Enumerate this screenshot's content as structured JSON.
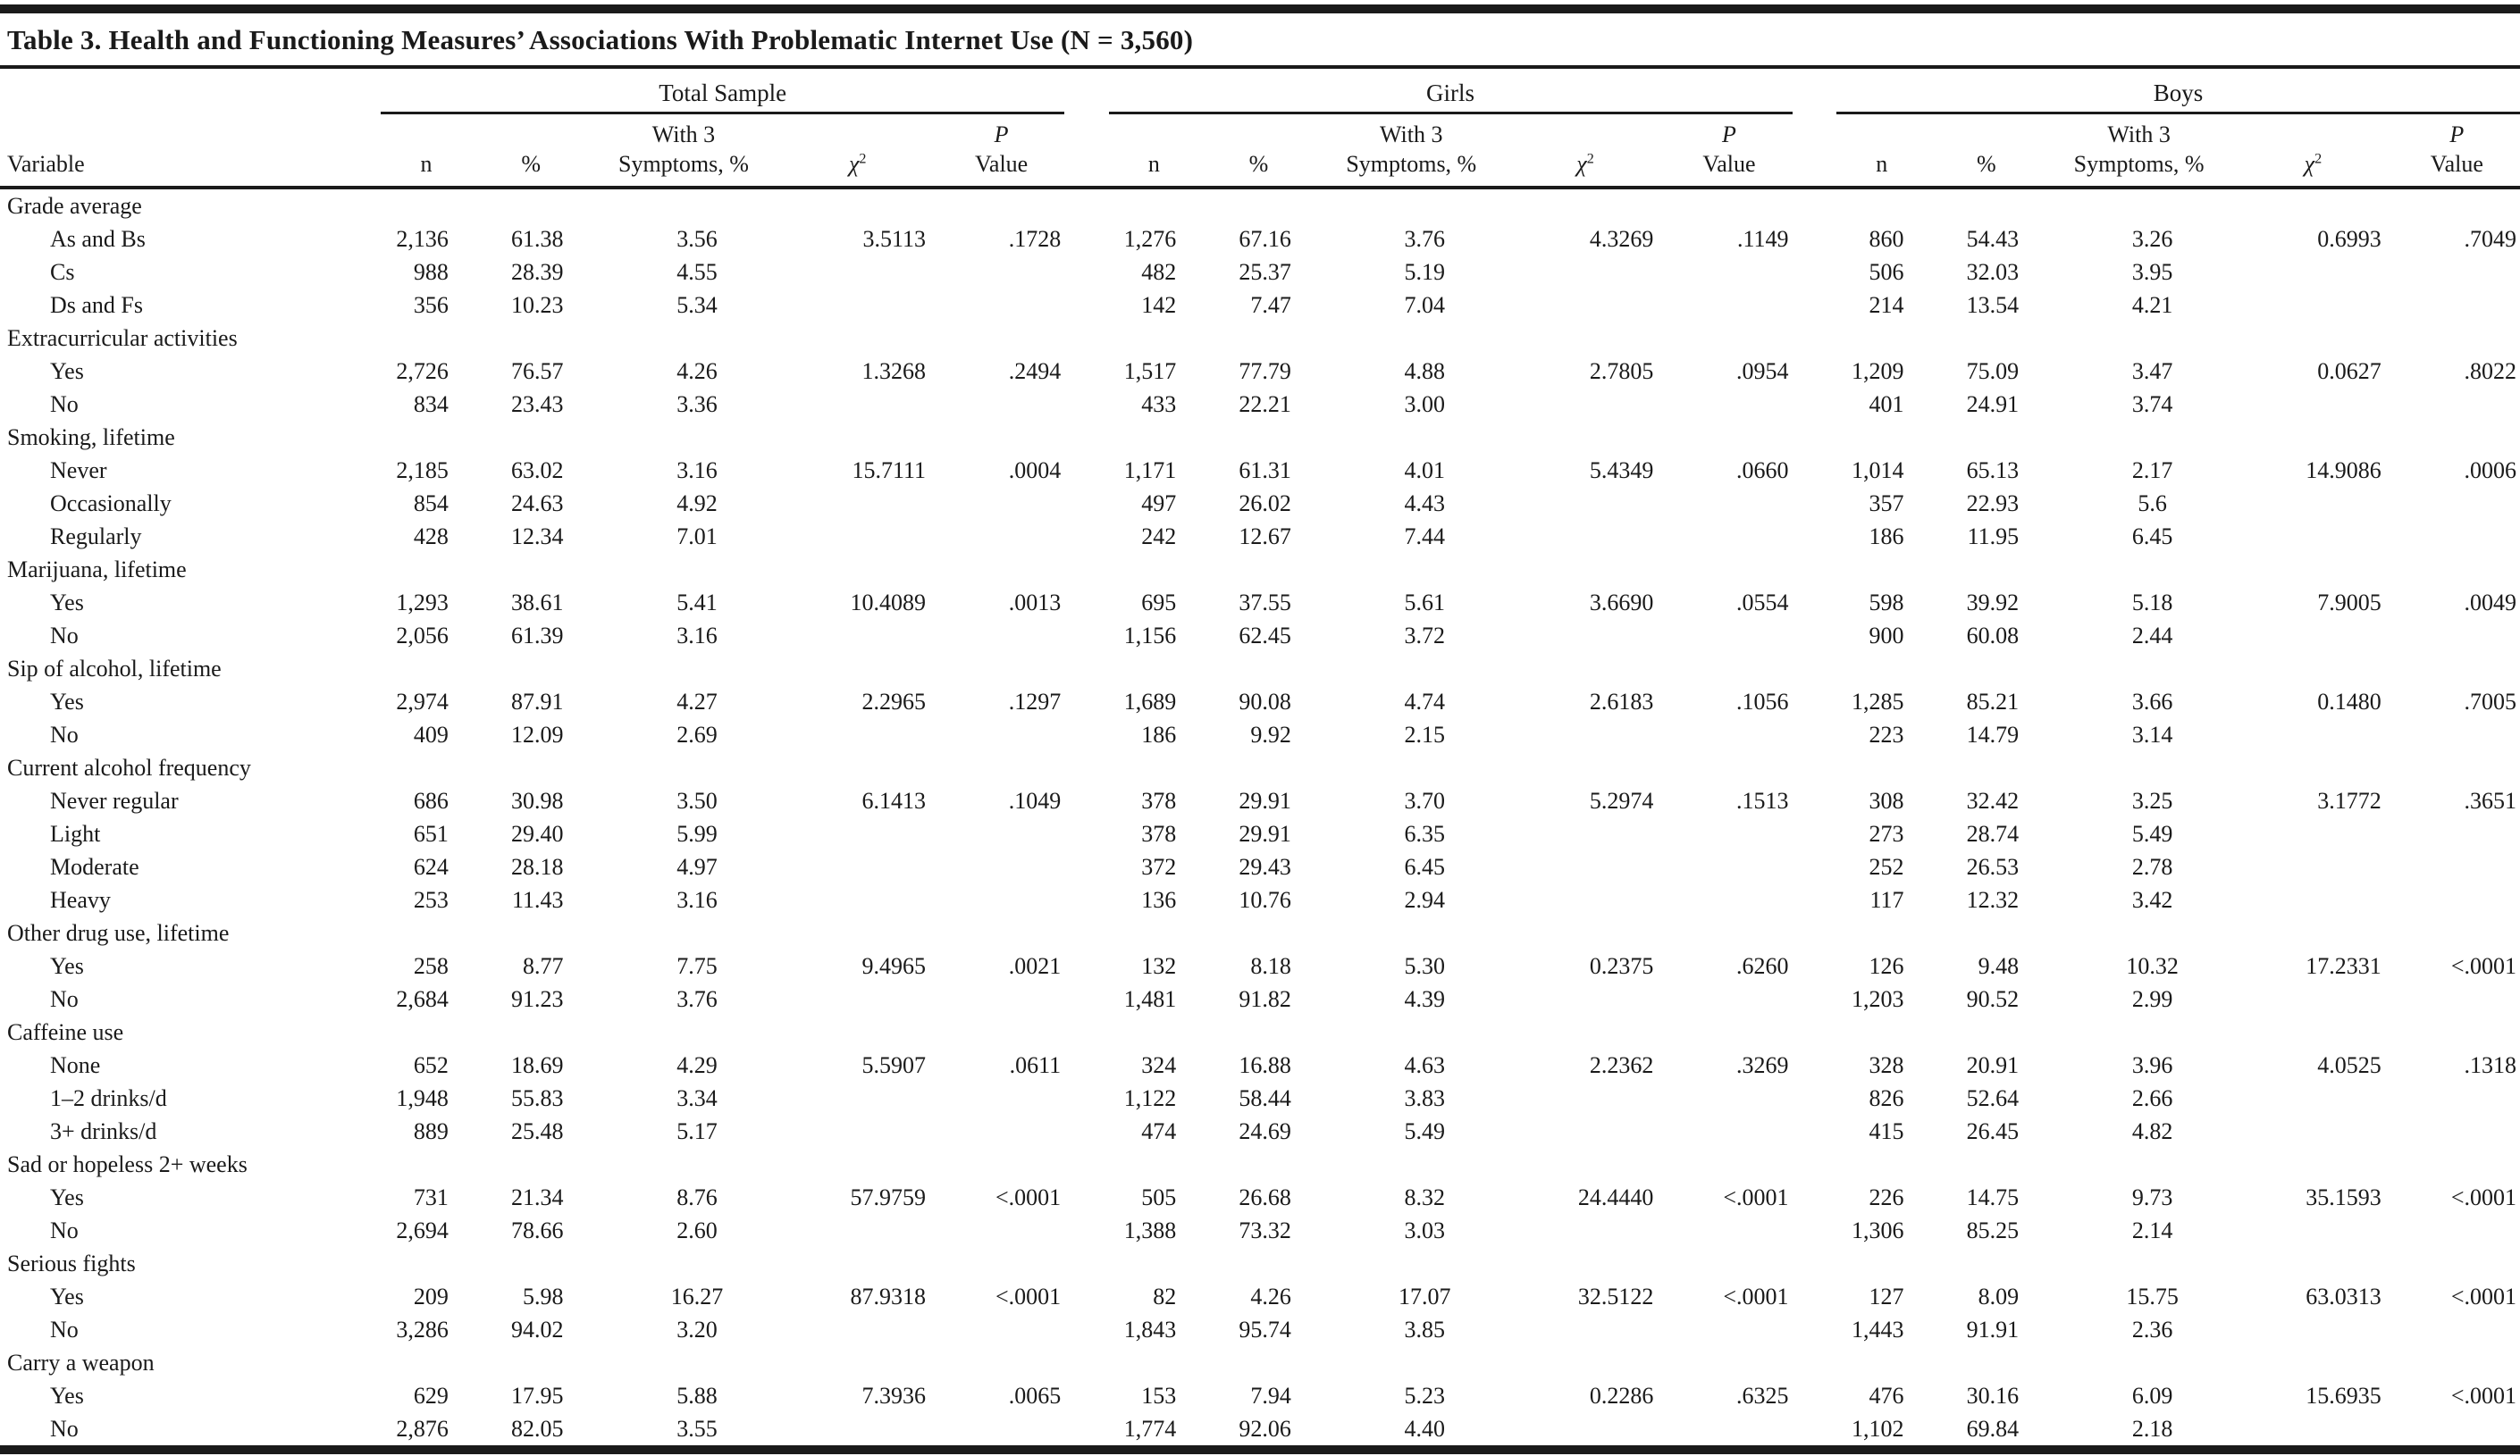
{
  "title": "Table 3. Health and Functioning Measures’ Associations With Problematic Internet Use (N = 3,560)",
  "colors": {
    "ink": "#1a1a1a",
    "background": "#ffffff"
  },
  "groups": [
    {
      "label": "Total Sample"
    },
    {
      "label": "Girls"
    },
    {
      "label": "Boys"
    }
  ],
  "group_keys": [
    "total",
    "girls",
    "boys"
  ],
  "header": {
    "variable": "Variable",
    "n": "n",
    "pct": "%",
    "with3_line1": "With 3",
    "with3_line2": "Symptoms, %",
    "chi_symbol": "χ",
    "chi_sup": "2",
    "p_line1": "P",
    "p_line2": "Value"
  },
  "sections": [
    {
      "label": "Grade average",
      "rows": [
        {
          "label": "As and Bs",
          "total": [
            "2,136",
            "61.38",
            "3.56",
            "3.5113",
            ".1728"
          ],
          "girls": [
            "1,276",
            "67.16",
            "3.76",
            "4.3269",
            ".1149"
          ],
          "boys": [
            "860",
            "54.43",
            "3.26",
            "0.6993",
            ".7049"
          ]
        },
        {
          "label": "Cs",
          "total": [
            "988",
            "28.39",
            "4.55",
            "",
            ""
          ],
          "girls": [
            "482",
            "25.37",
            "5.19",
            "",
            ""
          ],
          "boys": [
            "506",
            "32.03",
            "3.95",
            "",
            ""
          ]
        },
        {
          "label": "Ds and Fs",
          "total": [
            "356",
            "10.23",
            "5.34",
            "",
            ""
          ],
          "girls": [
            "142",
            "7.47",
            "7.04",
            "",
            ""
          ],
          "boys": [
            "214",
            "13.54",
            "4.21",
            "",
            ""
          ]
        }
      ]
    },
    {
      "label": "Extracurricular activities",
      "rows": [
        {
          "label": "Yes",
          "total": [
            "2,726",
            "76.57",
            "4.26",
            "1.3268",
            ".2494"
          ],
          "girls": [
            "1,517",
            "77.79",
            "4.88",
            "2.7805",
            ".0954"
          ],
          "boys": [
            "1,209",
            "75.09",
            "3.47",
            "0.0627",
            ".8022"
          ]
        },
        {
          "label": "No",
          "total": [
            "834",
            "23.43",
            "3.36",
            "",
            ""
          ],
          "girls": [
            "433",
            "22.21",
            "3.00",
            "",
            ""
          ],
          "boys": [
            "401",
            "24.91",
            "3.74",
            "",
            ""
          ]
        }
      ]
    },
    {
      "label": "Smoking, lifetime",
      "rows": [
        {
          "label": "Never",
          "total": [
            "2,185",
            "63.02",
            "3.16",
            "15.7111",
            ".0004"
          ],
          "girls": [
            "1,171",
            "61.31",
            "4.01",
            "5.4349",
            ".0660"
          ],
          "boys": [
            "1,014",
            "65.13",
            "2.17",
            "14.9086",
            ".0006"
          ]
        },
        {
          "label": "Occasionally",
          "total": [
            "854",
            "24.63",
            "4.92",
            "",
            ""
          ],
          "girls": [
            "497",
            "26.02",
            "4.43",
            "",
            ""
          ],
          "boys": [
            "357",
            "22.93",
            "5.6",
            "",
            ""
          ]
        },
        {
          "label": "Regularly",
          "total": [
            "428",
            "12.34",
            "7.01",
            "",
            ""
          ],
          "girls": [
            "242",
            "12.67",
            "7.44",
            "",
            ""
          ],
          "boys": [
            "186",
            "11.95",
            "6.45",
            "",
            ""
          ]
        }
      ]
    },
    {
      "label": "Marijuana, lifetime",
      "rows": [
        {
          "label": "Yes",
          "total": [
            "1,293",
            "38.61",
            "5.41",
            "10.4089",
            ".0013"
          ],
          "girls": [
            "695",
            "37.55",
            "5.61",
            "3.6690",
            ".0554"
          ],
          "boys": [
            "598",
            "39.92",
            "5.18",
            "7.9005",
            ".0049"
          ]
        },
        {
          "label": "No",
          "total": [
            "2,056",
            "61.39",
            "3.16",
            "",
            ""
          ],
          "girls": [
            "1,156",
            "62.45",
            "3.72",
            "",
            ""
          ],
          "boys": [
            "900",
            "60.08",
            "2.44",
            "",
            ""
          ]
        }
      ]
    },
    {
      "label": "Sip of alcohol, lifetime",
      "rows": [
        {
          "label": "Yes",
          "total": [
            "2,974",
            "87.91",
            "4.27",
            "2.2965",
            ".1297"
          ],
          "girls": [
            "1,689",
            "90.08",
            "4.74",
            "2.6183",
            ".1056"
          ],
          "boys": [
            "1,285",
            "85.21",
            "3.66",
            "0.1480",
            ".7005"
          ]
        },
        {
          "label": "No",
          "total": [
            "409",
            "12.09",
            "2.69",
            "",
            ""
          ],
          "girls": [
            "186",
            "9.92",
            "2.15",
            "",
            ""
          ],
          "boys": [
            "223",
            "14.79",
            "3.14",
            "",
            ""
          ]
        }
      ]
    },
    {
      "label": "Current alcohol frequency",
      "rows": [
        {
          "label": "Never regular",
          "total": [
            "686",
            "30.98",
            "3.50",
            "6.1413",
            ".1049"
          ],
          "girls": [
            "378",
            "29.91",
            "3.70",
            "5.2974",
            ".1513"
          ],
          "boys": [
            "308",
            "32.42",
            "3.25",
            "3.1772",
            ".3651"
          ]
        },
        {
          "label": "Light",
          "total": [
            "651",
            "29.40",
            "5.99",
            "",
            ""
          ],
          "girls": [
            "378",
            "29.91",
            "6.35",
            "",
            ""
          ],
          "boys": [
            "273",
            "28.74",
            "5.49",
            "",
            ""
          ]
        },
        {
          "label": "Moderate",
          "total": [
            "624",
            "28.18",
            "4.97",
            "",
            ""
          ],
          "girls": [
            "372",
            "29.43",
            "6.45",
            "",
            ""
          ],
          "boys": [
            "252",
            "26.53",
            "2.78",
            "",
            ""
          ]
        },
        {
          "label": "Heavy",
          "total": [
            "253",
            "11.43",
            "3.16",
            "",
            ""
          ],
          "girls": [
            "136",
            "10.76",
            "2.94",
            "",
            ""
          ],
          "boys": [
            "117",
            "12.32",
            "3.42",
            "",
            ""
          ]
        }
      ]
    },
    {
      "label": "Other drug use, lifetime",
      "rows": [
        {
          "label": "Yes",
          "total": [
            "258",
            "8.77",
            "7.75",
            "9.4965",
            ".0021"
          ],
          "girls": [
            "132",
            "8.18",
            "5.30",
            "0.2375",
            ".6260"
          ],
          "boys": [
            "126",
            "9.48",
            "10.32",
            "17.2331",
            "<.0001"
          ]
        },
        {
          "label": "No",
          "total": [
            "2,684",
            "91.23",
            "3.76",
            "",
            ""
          ],
          "girls": [
            "1,481",
            "91.82",
            "4.39",
            "",
            ""
          ],
          "boys": [
            "1,203",
            "90.52",
            "2.99",
            "",
            ""
          ]
        }
      ]
    },
    {
      "label": "Caffeine use",
      "rows": [
        {
          "label": "None",
          "total": [
            "652",
            "18.69",
            "4.29",
            "5.5907",
            ".0611"
          ],
          "girls": [
            "324",
            "16.88",
            "4.63",
            "2.2362",
            ".3269"
          ],
          "boys": [
            "328",
            "20.91",
            "3.96",
            "4.0525",
            ".1318"
          ]
        },
        {
          "label": "1–2 drinks/d",
          "total": [
            "1,948",
            "55.83",
            "3.34",
            "",
            ""
          ],
          "girls": [
            "1,122",
            "58.44",
            "3.83",
            "",
            ""
          ],
          "boys": [
            "826",
            "52.64",
            "2.66",
            "",
            ""
          ]
        },
        {
          "label": "3+ drinks/d",
          "total": [
            "889",
            "25.48",
            "5.17",
            "",
            ""
          ],
          "girls": [
            "474",
            "24.69",
            "5.49",
            "",
            ""
          ],
          "boys": [
            "415",
            "26.45",
            "4.82",
            "",
            ""
          ]
        }
      ]
    },
    {
      "label": "Sad or hopeless 2+ weeks",
      "rows": [
        {
          "label": "Yes",
          "total": [
            "731",
            "21.34",
            "8.76",
            "57.9759",
            "<.0001"
          ],
          "girls": [
            "505",
            "26.68",
            "8.32",
            "24.4440",
            "<.0001"
          ],
          "boys": [
            "226",
            "14.75",
            "9.73",
            "35.1593",
            "<.0001"
          ]
        },
        {
          "label": "No",
          "total": [
            "2,694",
            "78.66",
            "2.60",
            "",
            ""
          ],
          "girls": [
            "1,388",
            "73.32",
            "3.03",
            "",
            ""
          ],
          "boys": [
            "1,306",
            "85.25",
            "2.14",
            "",
            ""
          ]
        }
      ]
    },
    {
      "label": "Serious fights",
      "rows": [
        {
          "label": "Yes",
          "total": [
            "209",
            "5.98",
            "16.27",
            "87.9318",
            "<.0001"
          ],
          "girls": [
            "82",
            "4.26",
            "17.07",
            "32.5122",
            "<.0001"
          ],
          "boys": [
            "127",
            "8.09",
            "15.75",
            "63.0313",
            "<.0001"
          ]
        },
        {
          "label": "No",
          "total": [
            "3,286",
            "94.02",
            "3.20",
            "",
            ""
          ],
          "girls": [
            "1,843",
            "95.74",
            "3.85",
            "",
            ""
          ],
          "boys": [
            "1,443",
            "91.91",
            "2.36",
            "",
            ""
          ]
        }
      ]
    },
    {
      "label": "Carry a weapon",
      "rows": [
        {
          "label": "Yes",
          "total": [
            "629",
            "17.95",
            "5.88",
            "7.3936",
            ".0065"
          ],
          "girls": [
            "153",
            "7.94",
            "5.23",
            "0.2286",
            ".6325"
          ],
          "boys": [
            "476",
            "30.16",
            "6.09",
            "15.6935",
            "<.0001"
          ]
        },
        {
          "label": "No",
          "total": [
            "2,876",
            "82.05",
            "3.55",
            "",
            ""
          ],
          "girls": [
            "1,774",
            "92.06",
            "4.40",
            "",
            ""
          ],
          "boys": [
            "1,102",
            "69.84",
            "2.18",
            "",
            ""
          ]
        }
      ]
    }
  ]
}
